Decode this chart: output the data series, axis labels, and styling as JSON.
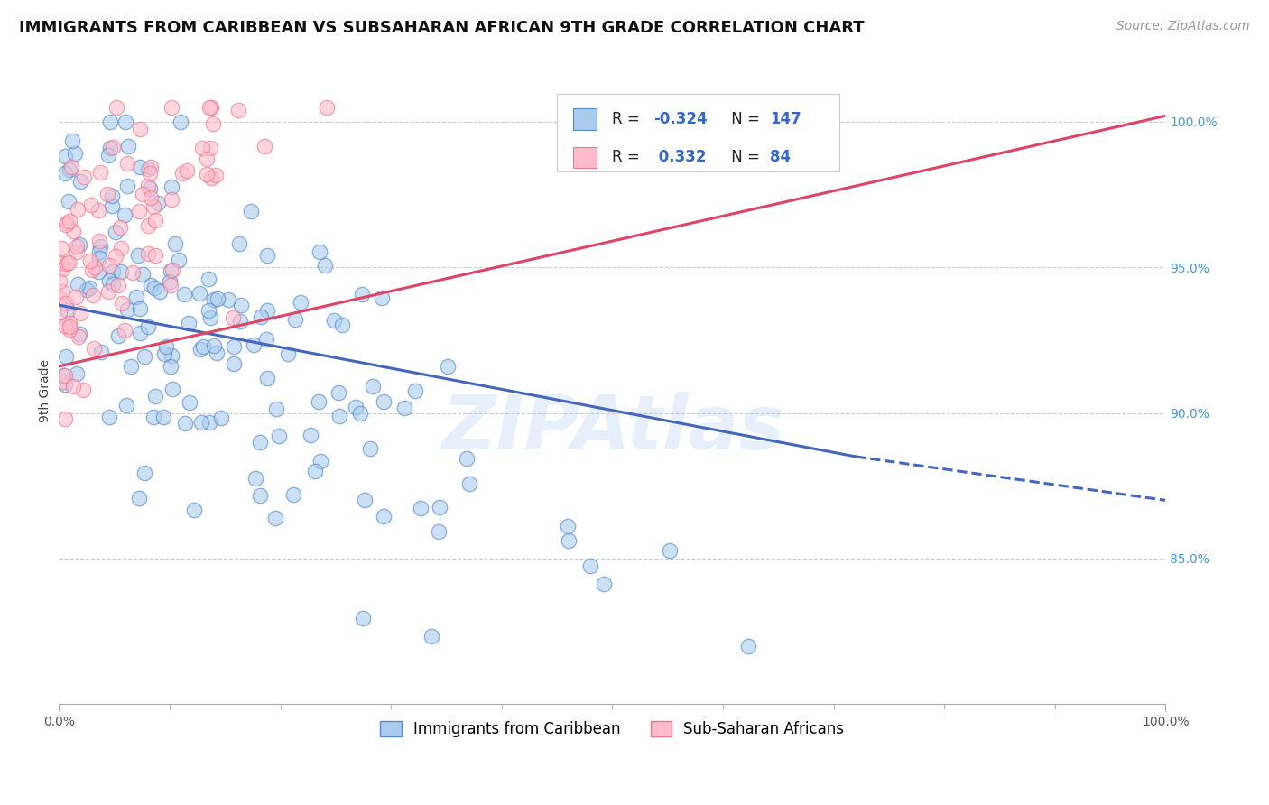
{
  "title": "IMMIGRANTS FROM CARIBBEAN VS SUBSAHARAN AFRICAN 9TH GRADE CORRELATION CHART",
  "source": "Source: ZipAtlas.com",
  "ylabel": "9th Grade",
  "y_tick_labels": [
    "85.0%",
    "90.0%",
    "95.0%",
    "100.0%"
  ],
  "y_tick_values": [
    0.85,
    0.9,
    0.95,
    1.0
  ],
  "x_lim": [
    0.0,
    1.0
  ],
  "y_lim": [
    0.8,
    1.015
  ],
  "legend_blue_label": "Immigrants from Caribbean",
  "legend_pink_label": "Sub-Saharan Africans",
  "R_blue": -0.324,
  "N_blue": 147,
  "R_pink": 0.332,
  "N_pink": 84,
  "blue_face": "#AACCEE",
  "blue_edge": "#5588CC",
  "pink_face": "#FFBBCC",
  "pink_edge": "#EE7788",
  "blue_trend_color": "#4466BB",
  "pink_trend_color": "#DD4466",
  "watermark": "ZIPAtlas",
  "title_fontsize": 13,
  "source_fontsize": 10,
  "axis_label_fontsize": 10,
  "tick_fontsize": 10,
  "legend_fontsize": 12
}
